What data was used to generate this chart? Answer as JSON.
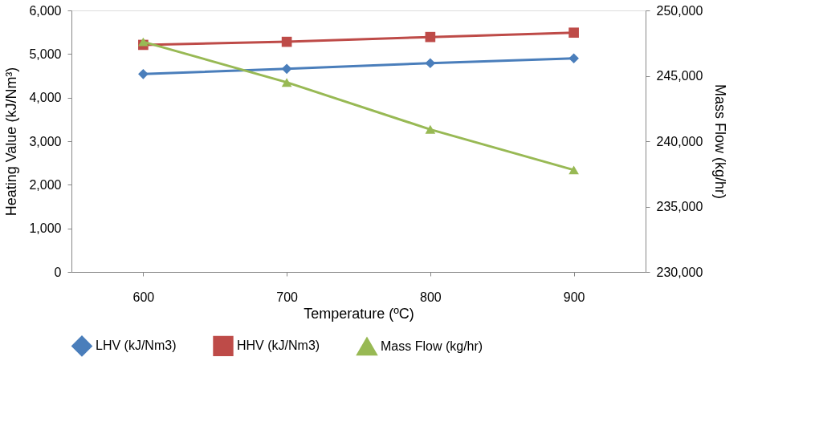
{
  "chart_data": {
    "type": "line",
    "xlabel": "Temperature (ºC)",
    "ylabel": "Heating Value (kJ/Nm³)",
    "y2label": "Mass Flow (kg/hr)",
    "categories": [
      "600",
      "700",
      "800",
      "900"
    ],
    "series": [
      {
        "name": "LHV (kJ/Nm3)",
        "color": "#4a7ebb",
        "marker": "diamond",
        "values": [
          4540,
          4660,
          4790,
          4900
        ]
      },
      {
        "name": "HHV (kJ/Nm3)",
        "color": "#be4b48",
        "marker": "square",
        "values": [
          5210,
          5280,
          5390,
          5490
        ]
      },
      {
        "name": "Mass Flow (kg/hr)",
        "color": "#98b954",
        "marker": "triangle",
        "axis": "y2",
        "values": [
          247600,
          244500,
          240900,
          237800
        ]
      }
    ],
    "ylim": [
      0,
      6000
    ],
    "yticks": [
      {
        "value": 0,
        "label": "0"
      },
      {
        "value": 1000,
        "label": "1,000"
      },
      {
        "value": 2000,
        "label": "2,000"
      },
      {
        "value": 3000,
        "label": "3,000"
      },
      {
        "value": 4000,
        "label": "4,000"
      },
      {
        "value": 5000,
        "label": "5,000"
      },
      {
        "value": 6000,
        "label": "6,000"
      }
    ],
    "y2lim": [
      230000,
      250000
    ],
    "y2ticks": [
      {
        "value": 230000,
        "label": "230,000"
      },
      {
        "value": 235000,
        "label": "235,000"
      },
      {
        "value": 240000,
        "label": "240,000"
      },
      {
        "value": 245000,
        "label": "245,000"
      },
      {
        "value": 250000,
        "label": "250,000"
      }
    ],
    "legend": "bottom",
    "grid": false,
    "line_style": "solid"
  }
}
